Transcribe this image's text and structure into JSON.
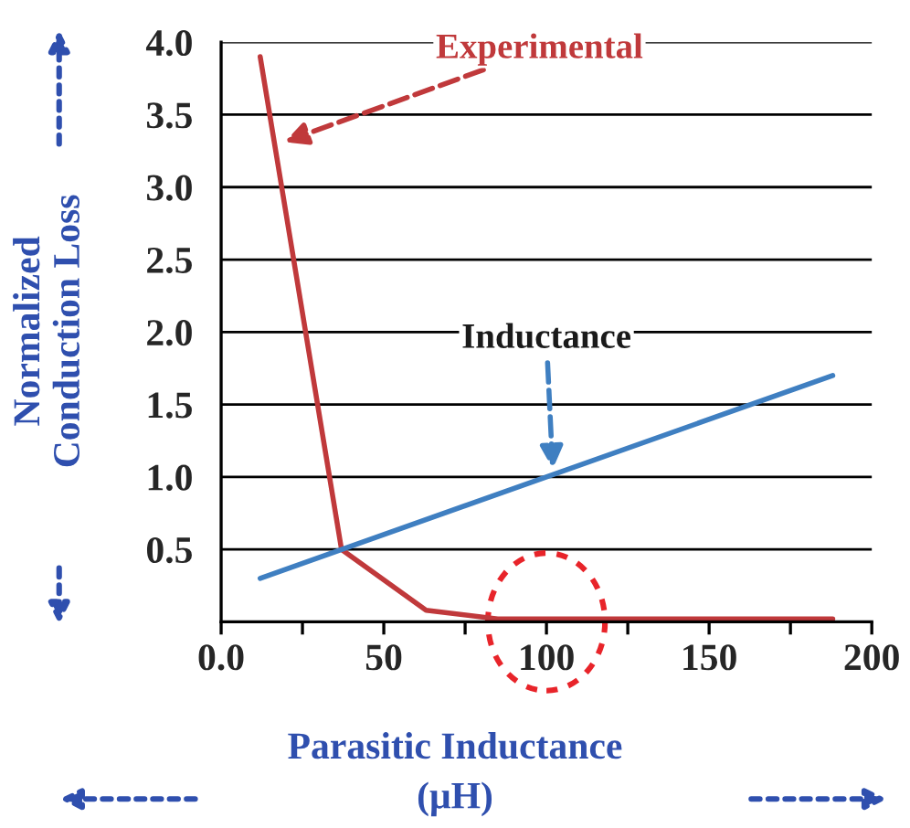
{
  "chart_data": {
    "type": "line",
    "xlabel": "Parasitic Inductance\n(μH)",
    "ylabel": "Normalized\nConduction Loss",
    "series": [
      {
        "name": "Experimental",
        "color": "#c0393b",
        "x": [
          12,
          37,
          63,
          85,
          188
        ],
        "values": [
          3.9,
          0.5,
          0.08,
          0.02,
          0.02
        ]
      },
      {
        "name": "Inductance",
        "color": "#3f7fc1",
        "x": [
          12,
          188
        ],
        "values": [
          0.3,
          1.7
        ]
      }
    ],
    "xlim": [
      0,
      200
    ],
    "ylim": [
      0,
      4.0
    ],
    "xticks": [
      {
        "value": 0,
        "label": "0.0"
      },
      {
        "value": 25,
        "label": null
      },
      50,
      {
        "value": 75,
        "label": null
      },
      100,
      {
        "value": 125,
        "label": null
      },
      150,
      {
        "value": 175,
        "label": null
      },
      200
    ],
    "yticks": [
      {
        "value": 0,
        "label": null
      },
      0.5,
      {
        "value": 1,
        "label": "1.0"
      },
      1.5,
      {
        "value": 2,
        "label": "2.0"
      },
      2.5,
      {
        "value": 3,
        "label": "3.0"
      },
      3.5,
      {
        "value": 4,
        "label": "4.0"
      }
    ],
    "grid": "y",
    "legend": false,
    "marker": "none",
    "line_style": "solid"
  }
}
